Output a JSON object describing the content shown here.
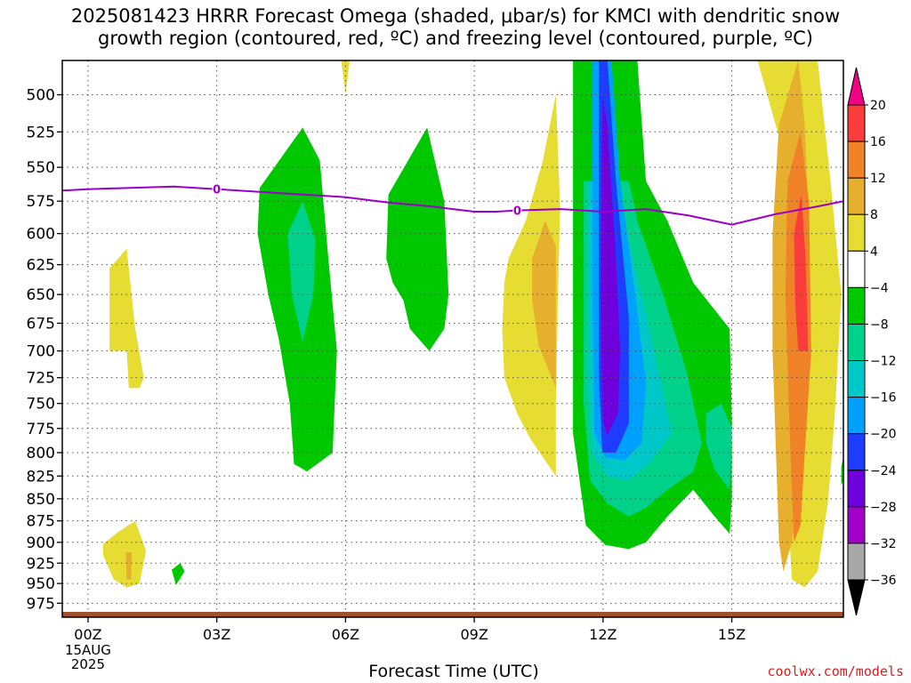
{
  "title_line1": "2025081423 HRRR Forecast Omega (shaded, μbar/s) for KMCI with dendritic snow",
  "title_line2": "growth region (contoured, red, ºC) and freezing level (contoured, purple, ºC)",
  "credit": "coolwx.com/models",
  "chart_data": {
    "type": "heatmap",
    "title": "2025081423 HRRR Forecast Omega (shaded, μbar/s) for KMCI with dendritic snow growth region (contoured, red, ºC) and freezing level (contoured, purple, ºC)",
    "xlabel": "Forecast Time (UTC)",
    "ylabel": "",
    "x_ticks": [
      {
        "hour": 0,
        "label": "00Z",
        "sub": [
          "15AUG",
          "2025"
        ]
      },
      {
        "hour": 3,
        "label": "03Z",
        "sub": []
      },
      {
        "hour": 6,
        "label": "06Z",
        "sub": []
      },
      {
        "hour": 9,
        "label": "09Z",
        "sub": []
      },
      {
        "hour": 12,
        "label": "12Z",
        "sub": []
      },
      {
        "hour": 15,
        "label": "15Z",
        "sub": []
      }
    ],
    "xlim_hours": [
      -0.6,
      17.6
    ],
    "y_pressure_levels": [
      500,
      525,
      550,
      575,
      600,
      625,
      650,
      675,
      700,
      725,
      750,
      775,
      800,
      825,
      850,
      875,
      900,
      925,
      950,
      975
    ],
    "ylim_hPa": [
      478,
      993
    ],
    "colorbar": {
      "labels": [
        "20",
        "16",
        "12",
        "8",
        "4",
        "−4",
        "−8",
        "−12",
        "−16",
        "−20",
        "−24",
        "−28",
        "−32",
        "−36"
      ],
      "bins": [
        {
          "range": "<-36",
          "color": "#000000"
        },
        {
          "range": "-36..-32",
          "color": "#a8a8a8"
        },
        {
          "range": "-32..-28",
          "color": "#a000c8"
        },
        {
          "range": "-28..-24",
          "color": "#6e00dc"
        },
        {
          "range": "-24..-20",
          "color": "#1e3cff"
        },
        {
          "range": "-20..-16",
          "color": "#00a0ff"
        },
        {
          "range": "-16..-12",
          "color": "#00c8c8"
        },
        {
          "range": "-12..-8",
          "color": "#00d28c"
        },
        {
          "range": "-8..-4",
          "color": "#00c800"
        },
        {
          "range": "-4..4",
          "color": "#ffffff"
        },
        {
          "range": "4..8",
          "color": "#e6dc32"
        },
        {
          "range": "8..12",
          "color": "#e6af2d"
        },
        {
          "range": "12..16",
          "color": "#f08228"
        },
        {
          "range": "16..20",
          "color": "#fa3c3c"
        },
        {
          "range": ">20",
          "color": "#f00082"
        }
      ]
    },
    "omega_features": [
      {
        "omega": 4,
        "points": [
          [
            0.5,
            628
          ],
          [
            0.9,
            612
          ],
          [
            1.1,
            680
          ],
          [
            1.3,
            725
          ],
          [
            1.2,
            735
          ],
          [
            0.95,
            735
          ],
          [
            0.9,
            700
          ],
          [
            0.5,
            700
          ]
        ]
      },
      {
        "omega": 4,
        "points": [
          [
            0.35,
            902
          ],
          [
            0.7,
            888
          ],
          [
            1.1,
            875
          ],
          [
            1.35,
            910
          ],
          [
            1.2,
            950
          ],
          [
            0.9,
            955
          ],
          [
            0.6,
            945
          ],
          [
            0.35,
            915
          ]
        ]
      },
      {
        "omega": 8,
        "points": [
          [
            0.88,
            912
          ],
          [
            1.02,
            912
          ],
          [
            1.0,
            945
          ],
          [
            0.9,
            945
          ]
        ]
      },
      {
        "omega": -4,
        "points": [
          [
            1.95,
            933
          ],
          [
            2.15,
            925
          ],
          [
            2.25,
            935
          ],
          [
            2.05,
            952
          ]
        ]
      },
      {
        "omega": 4,
        "points": [
          [
            5.9,
            478
          ],
          [
            6.1,
            478
          ],
          [
            6.0,
            500
          ]
        ]
      },
      {
        "omega": -4,
        "points": [
          [
            4.0,
            565
          ],
          [
            5.0,
            522
          ],
          [
            5.4,
            545
          ],
          [
            5.6,
            620
          ],
          [
            5.8,
            700
          ],
          [
            5.7,
            800
          ],
          [
            5.1,
            820
          ],
          [
            4.8,
            812
          ],
          [
            4.7,
            750
          ],
          [
            4.45,
            690
          ],
          [
            4.2,
            650
          ],
          [
            3.95,
            600
          ]
        ]
      },
      {
        "omega": -8,
        "points": [
          [
            4.65,
            600
          ],
          [
            5.0,
            575
          ],
          [
            5.3,
            605
          ],
          [
            5.25,
            650
          ],
          [
            5.0,
            692
          ],
          [
            4.75,
            650
          ]
        ]
      },
      {
        "omega": -4,
        "points": [
          [
            7.0,
            570
          ],
          [
            7.9,
            522
          ],
          [
            8.3,
            575
          ],
          [
            8.4,
            650
          ],
          [
            8.3,
            680
          ],
          [
            7.95,
            700
          ],
          [
            7.5,
            680
          ],
          [
            7.35,
            655
          ],
          [
            7.1,
            640
          ],
          [
            6.95,
            620
          ]
        ]
      },
      {
        "omega": 4,
        "points": [
          [
            9.8,
            620
          ],
          [
            10.2,
            590
          ],
          [
            10.6,
            545
          ],
          [
            10.9,
            500
          ],
          [
            11.0,
            580
          ],
          [
            10.95,
            650
          ],
          [
            10.9,
            750
          ],
          [
            10.9,
            825
          ],
          [
            10.6,
            805
          ],
          [
            10.3,
            785
          ],
          [
            10.0,
            760
          ],
          [
            9.7,
            725
          ],
          [
            9.65,
            680
          ],
          [
            9.7,
            640
          ]
        ]
      },
      {
        "omega": 8,
        "points": [
          [
            10.35,
            620
          ],
          [
            10.65,
            590
          ],
          [
            10.9,
            610
          ],
          [
            10.9,
            735
          ],
          [
            10.5,
            695
          ],
          [
            10.35,
            655
          ]
        ]
      },
      {
        "omega": -4,
        "points": [
          [
            11.3,
            478
          ],
          [
            12.8,
            478
          ],
          [
            13.0,
            560
          ],
          [
            13.5,
            590
          ],
          [
            14.1,
            640
          ],
          [
            14.95,
            680
          ],
          [
            15.0,
            765
          ],
          [
            15.0,
            850
          ],
          [
            14.95,
            890
          ],
          [
            14.6,
            870
          ],
          [
            14.1,
            840
          ],
          [
            13.5,
            870
          ],
          [
            13.0,
            900
          ],
          [
            12.6,
            908
          ],
          [
            12.05,
            903
          ],
          [
            11.6,
            880
          ],
          [
            11.3,
            780
          ]
        ]
      },
      {
        "omega": -8,
        "points": [
          [
            11.55,
            560
          ],
          [
            12.6,
            560
          ],
          [
            12.8,
            590
          ],
          [
            13.4,
            650
          ],
          [
            13.95,
            720
          ],
          [
            14.3,
            790
          ],
          [
            14.1,
            820
          ],
          [
            13.5,
            840
          ],
          [
            13.0,
            860
          ],
          [
            12.6,
            870
          ],
          [
            12.1,
            855
          ],
          [
            11.7,
            830
          ],
          [
            11.55,
            750
          ]
        ]
      },
      {
        "omega": -8,
        "points": [
          [
            14.4,
            760
          ],
          [
            14.75,
            750
          ],
          [
            15.0,
            775
          ],
          [
            14.95,
            840
          ],
          [
            14.6,
            818
          ],
          [
            14.4,
            790
          ]
        ]
      },
      {
        "omega": -12,
        "points": [
          [
            11.65,
            560
          ],
          [
            12.3,
            560
          ],
          [
            12.55,
            600
          ],
          [
            12.9,
            650
          ],
          [
            13.3,
            720
          ],
          [
            13.6,
            780
          ],
          [
            13.1,
            810
          ],
          [
            12.6,
            830
          ],
          [
            12.1,
            825
          ],
          [
            11.75,
            800
          ],
          [
            11.65,
            720
          ]
        ]
      },
      {
        "omega": -16,
        "points": [
          [
            11.75,
            478
          ],
          [
            12.2,
            478
          ],
          [
            12.4,
            560
          ],
          [
            12.75,
            650
          ],
          [
            13.0,
            730
          ],
          [
            12.9,
            790
          ],
          [
            12.5,
            808
          ],
          [
            12.05,
            805
          ],
          [
            11.8,
            780
          ],
          [
            11.75,
            650
          ]
        ]
      },
      {
        "omega": -20,
        "points": [
          [
            11.9,
            478
          ],
          [
            12.1,
            478
          ],
          [
            12.3,
            560
          ],
          [
            12.6,
            670
          ],
          [
            12.6,
            770
          ],
          [
            12.3,
            800
          ],
          [
            11.98,
            800
          ],
          [
            11.9,
            720
          ]
        ]
      },
      {
        "omega": -24,
        "points": [
          [
            11.98,
            500
          ],
          [
            12.1,
            520
          ],
          [
            12.3,
            620
          ],
          [
            12.4,
            700
          ],
          [
            12.35,
            760
          ],
          [
            12.1,
            782
          ],
          [
            11.98,
            765
          ],
          [
            11.95,
            650
          ]
        ]
      },
      {
        "omega": 4,
        "points": [
          [
            15.6,
            478
          ],
          [
            17.0,
            478
          ],
          [
            17.3,
            560
          ],
          [
            17.55,
            650
          ],
          [
            17.4,
            760
          ],
          [
            17.25,
            850
          ],
          [
            17.0,
            935
          ],
          [
            16.7,
            955
          ],
          [
            16.4,
            945
          ],
          [
            16.35,
            900
          ],
          [
            16.4,
            750
          ],
          [
            16.35,
            650
          ],
          [
            16.3,
            550
          ]
        ]
      },
      {
        "omega": 8,
        "points": [
          [
            16.1,
            520
          ],
          [
            16.55,
            478
          ],
          [
            16.7,
            520
          ],
          [
            16.8,
            600
          ],
          [
            16.85,
            700
          ],
          [
            16.7,
            800
          ],
          [
            16.4,
            900
          ],
          [
            16.2,
            935
          ],
          [
            16.1,
            900
          ],
          [
            15.95,
            700
          ],
          [
            15.95,
            600
          ]
        ]
      },
      {
        "omega": 12,
        "points": [
          [
            16.3,
            560
          ],
          [
            16.6,
            525
          ],
          [
            16.8,
            575
          ],
          [
            16.85,
            700
          ],
          [
            16.7,
            800
          ],
          [
            16.6,
            880
          ],
          [
            16.45,
            900
          ],
          [
            16.35,
            780
          ],
          [
            16.25,
            650
          ]
        ]
      },
      {
        "omega": 16,
        "points": [
          [
            16.45,
            600
          ],
          [
            16.62,
            570
          ],
          [
            16.72,
            620
          ],
          [
            16.78,
            700
          ],
          [
            16.55,
            700
          ],
          [
            16.48,
            660
          ]
        ]
      },
      {
        "omega": -4,
        "points": [
          [
            17.55,
            815
          ],
          [
            17.6,
            805
          ],
          [
            17.6,
            830
          ],
          [
            17.55,
            835
          ]
        ]
      }
    ],
    "freezing_level": {
      "value_label": "0",
      "points": [
        [
          -0.6,
          567
        ],
        [
          0.0,
          566
        ],
        [
          1.0,
          565
        ],
        [
          2.0,
          564
        ],
        [
          3.0,
          566
        ],
        [
          4.0,
          568
        ],
        [
          5.0,
          570
        ],
        [
          6.0,
          572
        ],
        [
          7.0,
          576
        ],
        [
          8.0,
          579
        ],
        [
          8.5,
          581
        ],
        [
          9.0,
          583
        ],
        [
          9.5,
          583
        ],
        [
          10.0,
          582
        ],
        [
          11.0,
          581
        ],
        [
          12.0,
          583
        ],
        [
          13.0,
          581
        ],
        [
          14.0,
          586
        ],
        [
          15.0,
          593
        ],
        [
          16.0,
          585
        ],
        [
          17.0,
          579
        ],
        [
          17.6,
          575
        ]
      ],
      "label_positions": [
        [
          3.0,
          566
        ],
        [
          10.0,
          582
        ]
      ]
    },
    "ground": {
      "color": "#a0522d",
      "pressure_hPa": 990
    }
  }
}
